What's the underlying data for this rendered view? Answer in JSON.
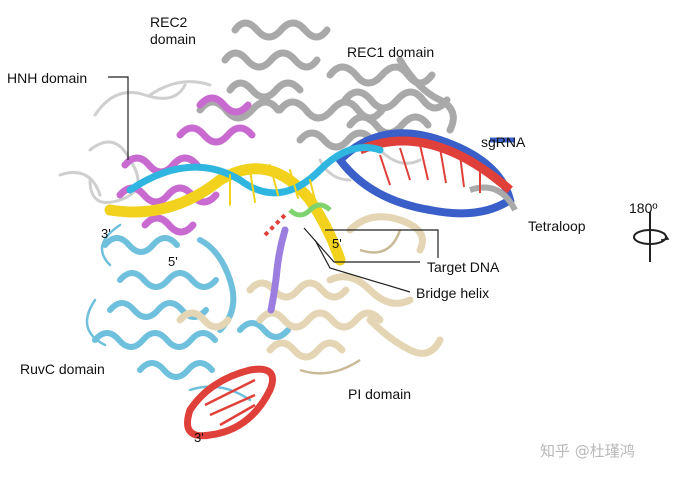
{
  "labels": {
    "rec2": "REC2\ndomain",
    "rec1": "REC1 domain",
    "hnh": "HNH domain",
    "sgrna": "sgRNA",
    "tetraloop": "Tetraloop",
    "rotation": "180º",
    "target_dna": "Target DNA",
    "bridge_helix": "Bridge helix",
    "ruvc": "RuvC domain",
    "pi": "PI domain"
  },
  "ends": {
    "three_prime_left": "3'",
    "five_prime_mid": "5'",
    "five_prime_center": "5'",
    "three_prime_bottom": "3'"
  },
  "watermark": "知乎 @杜瑾鸿",
  "colors": {
    "rec": "#a9a9a9",
    "hnh": "#c86ad0",
    "ruvc": "#6fc0dc",
    "pi": "#e4d6b4",
    "sgrna": "#e0403a",
    "target_dna": "#f2d21c",
    "nontarget_dna": "#2fb6e0",
    "tetraloop_helix": "#3a5fc8",
    "bridge_helix": "#9b7ee0",
    "green": "#7fd36f"
  }
}
